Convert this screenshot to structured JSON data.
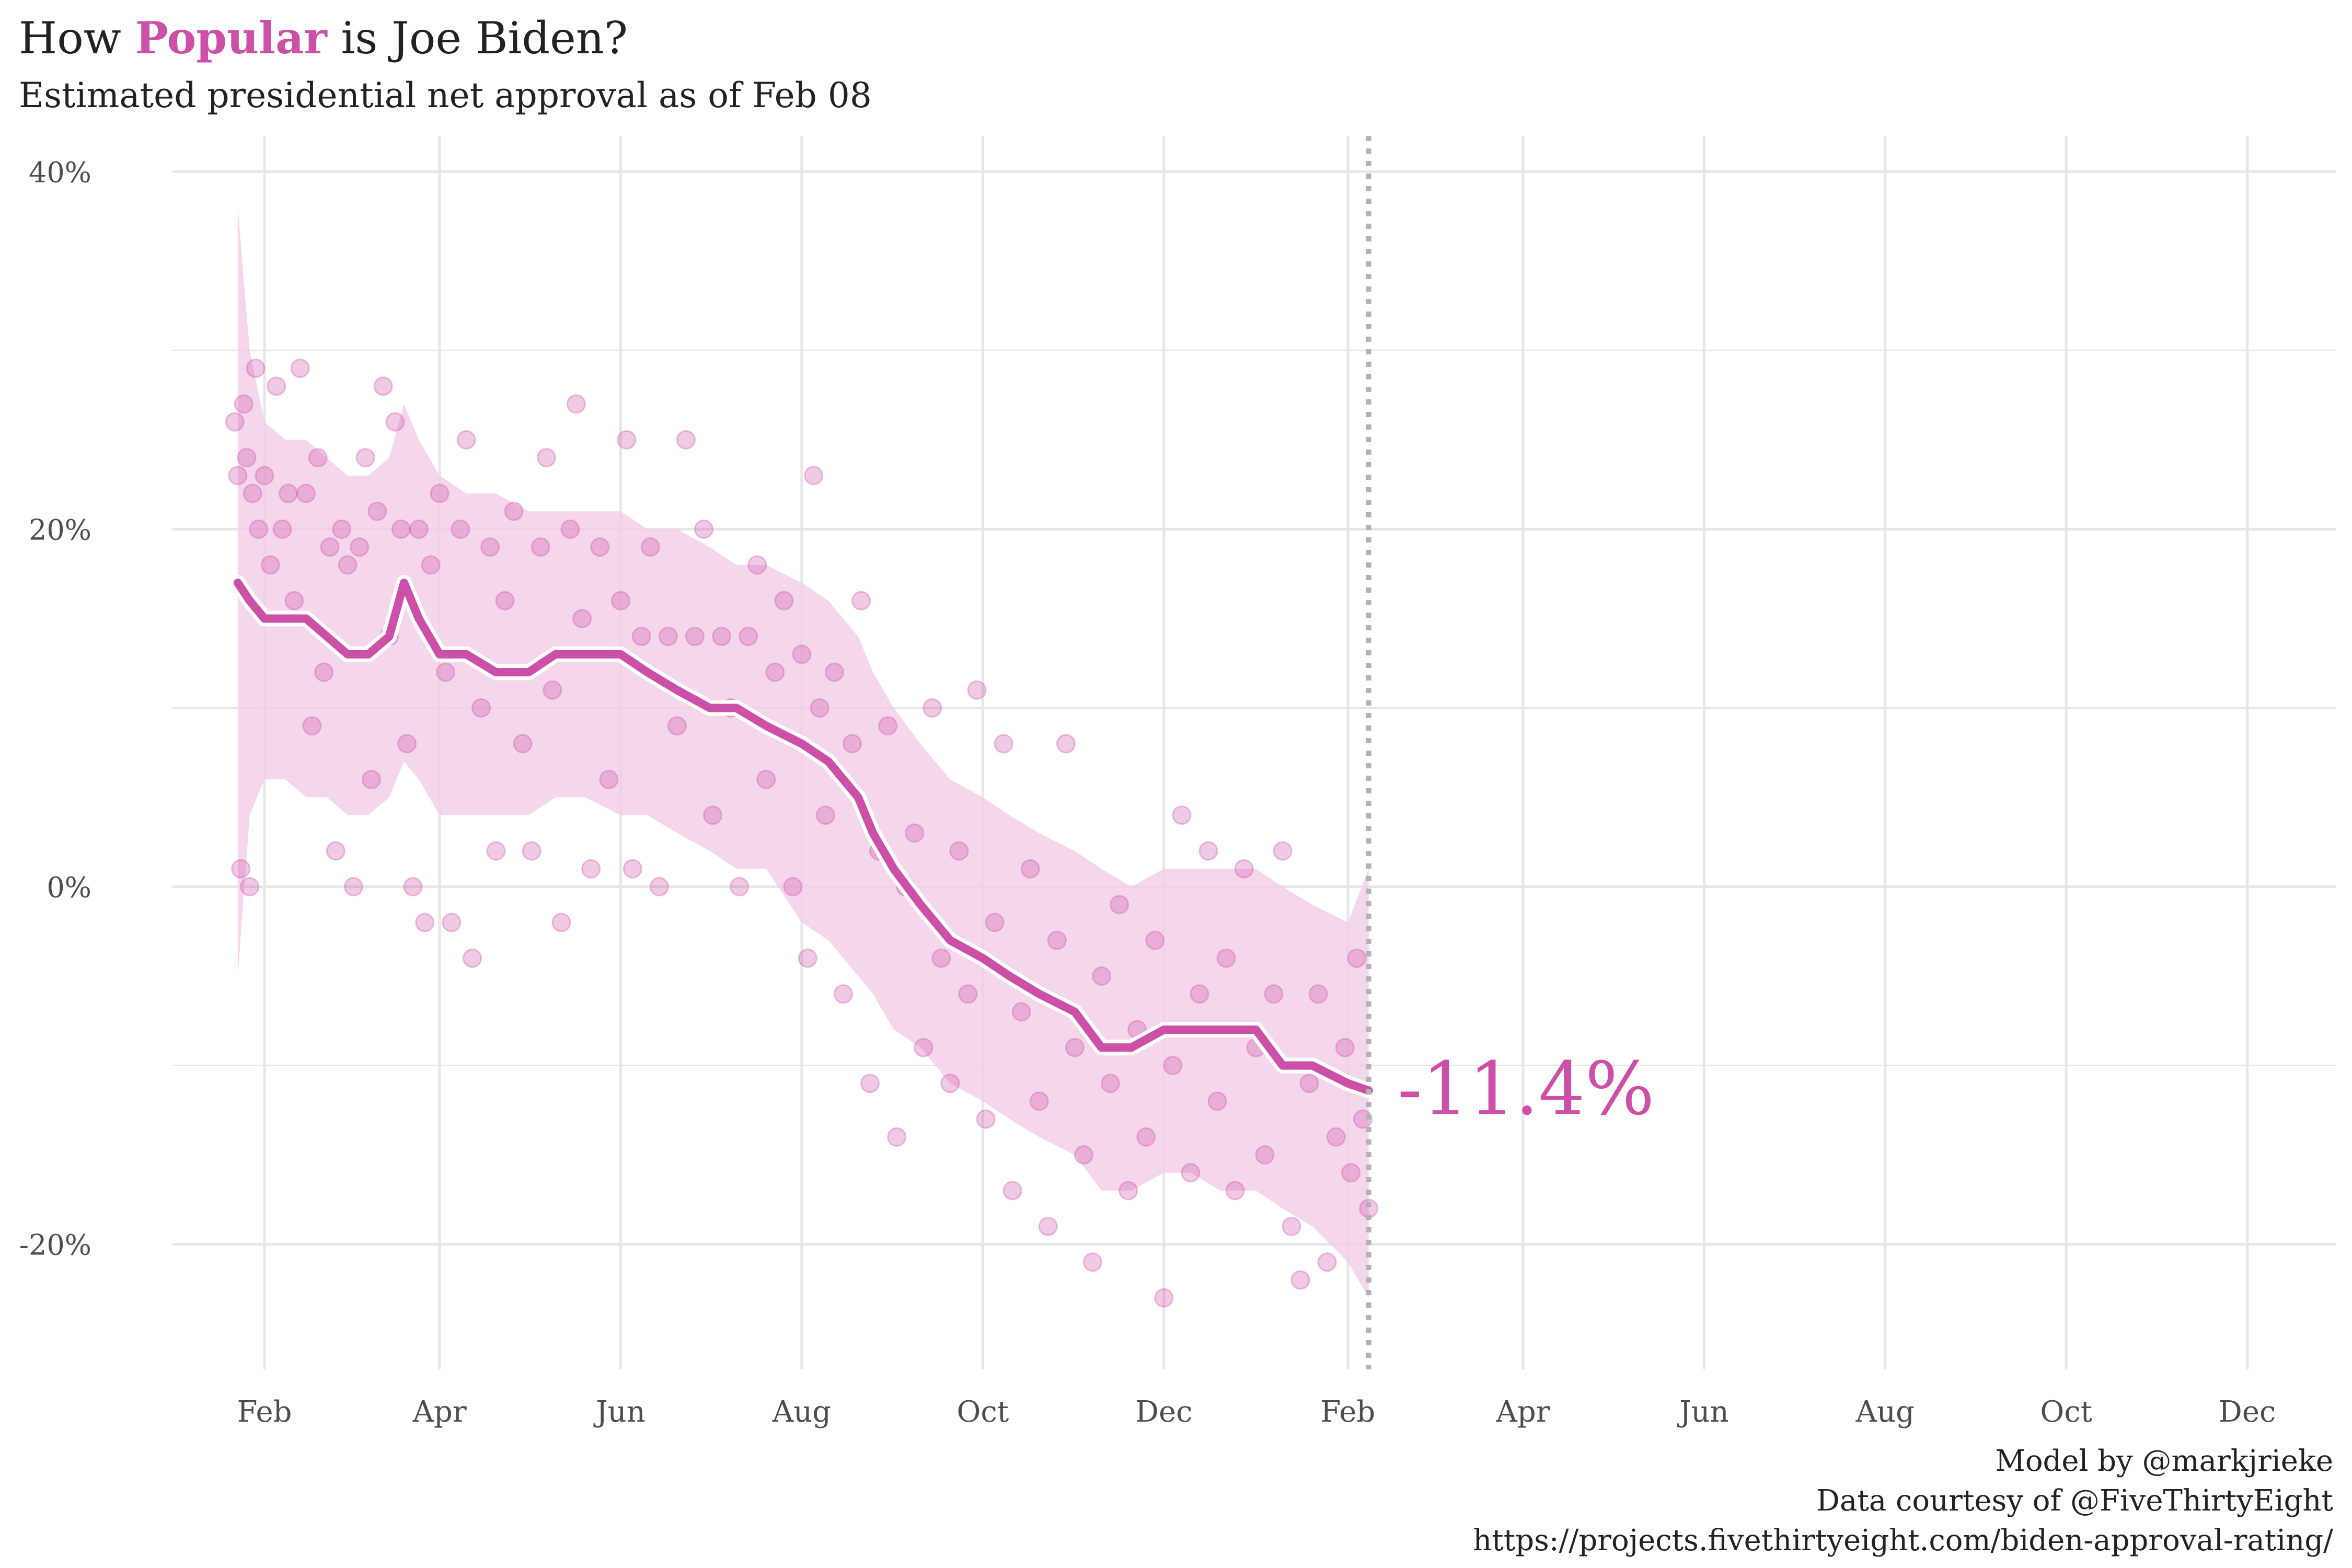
{
  "title": {
    "prefix": "How ",
    "highlight": "Popular",
    "suffix": " is Joe Biden?"
  },
  "subtitle": "Estimated presidential net approval as of Feb 08",
  "caption": [
    "Model by @markjrieke",
    "Data courtesy of @FiveThirtyEight",
    "https://projects.fivethirtyeight.com/biden-approval-rating/"
  ],
  "colors": {
    "accent": "#cc4fa8",
    "band": "#f3cde6",
    "grid": "#e6e6e6",
    "today_line": "#b3b3b3",
    "text": "#222222",
    "axis_text": "#4d4d4d"
  },
  "chart_data": {
    "type": "line",
    "xlabel": "",
    "ylabel": "",
    "x_range": [
      "2021-01-01",
      "2022-12-31"
    ],
    "ylim": [
      -27,
      42
    ],
    "x_ticks": [
      {
        "date": "2021-02-01",
        "label": "Feb"
      },
      {
        "date": "2021-04-01",
        "label": "Apr"
      },
      {
        "date": "2021-06-01",
        "label": "Jun"
      },
      {
        "date": "2021-08-01",
        "label": "Aug"
      },
      {
        "date": "2021-10-01",
        "label": "Oct"
      },
      {
        "date": "2021-12-01",
        "label": "Dec"
      },
      {
        "date": "2022-02-01",
        "label": "Feb"
      },
      {
        "date": "2022-04-01",
        "label": "Apr"
      },
      {
        "date": "2022-06-01",
        "label": "Jun"
      },
      {
        "date": "2022-08-01",
        "label": "Aug"
      },
      {
        "date": "2022-10-01",
        "label": "Oct"
      },
      {
        "date": "2022-12-01",
        "label": "Dec"
      }
    ],
    "y_ticks": [
      {
        "value": 40,
        "label": "40%"
      },
      {
        "value": 20,
        "label": "20%"
      },
      {
        "value": 0,
        "label": "0%"
      },
      {
        "value": -20,
        "label": "-20%"
      }
    ],
    "today": "2022-02-08",
    "final_label": "-11.4%",
    "grid": true,
    "series": [
      {
        "kind": "estimate_with_interval",
        "points": [
          {
            "date": "2021-01-23",
            "y": 17,
            "lo": -5,
            "hi": 38
          },
          {
            "date": "2021-01-27",
            "y": 16,
            "lo": 4,
            "hi": 30
          },
          {
            "date": "2021-02-01",
            "y": 15,
            "lo": 6,
            "hi": 26
          },
          {
            "date": "2021-02-08",
            "y": 15,
            "lo": 6,
            "hi": 25
          },
          {
            "date": "2021-02-15",
            "y": 15,
            "lo": 5,
            "hi": 25
          },
          {
            "date": "2021-02-22",
            "y": 14,
            "lo": 5,
            "hi": 24
          },
          {
            "date": "2021-03-01",
            "y": 13,
            "lo": 4,
            "hi": 23
          },
          {
            "date": "2021-03-08",
            "y": 13,
            "lo": 4,
            "hi": 23
          },
          {
            "date": "2021-03-15",
            "y": 14,
            "lo": 5,
            "hi": 24
          },
          {
            "date": "2021-03-20",
            "y": 17,
            "lo": 7,
            "hi": 27
          },
          {
            "date": "2021-03-25",
            "y": 15,
            "lo": 6,
            "hi": 25
          },
          {
            "date": "2021-04-01",
            "y": 13,
            "lo": 4,
            "hi": 23
          },
          {
            "date": "2021-04-10",
            "y": 13,
            "lo": 4,
            "hi": 22
          },
          {
            "date": "2021-04-20",
            "y": 12,
            "lo": 4,
            "hi": 22
          },
          {
            "date": "2021-05-01",
            "y": 12,
            "lo": 4,
            "hi": 21
          },
          {
            "date": "2021-05-10",
            "y": 13,
            "lo": 5,
            "hi": 21
          },
          {
            "date": "2021-05-20",
            "y": 13,
            "lo": 5,
            "hi": 21
          },
          {
            "date": "2021-06-01",
            "y": 13,
            "lo": 4,
            "hi": 21
          },
          {
            "date": "2021-06-10",
            "y": 12,
            "lo": 4,
            "hi": 20
          },
          {
            "date": "2021-06-20",
            "y": 11,
            "lo": 3,
            "hi": 20
          },
          {
            "date": "2021-07-01",
            "y": 10,
            "lo": 2,
            "hi": 19
          },
          {
            "date": "2021-07-10",
            "y": 10,
            "lo": 1,
            "hi": 18
          },
          {
            "date": "2021-07-20",
            "y": 9,
            "lo": 1,
            "hi": 18
          },
          {
            "date": "2021-08-01",
            "y": 8,
            "lo": -2,
            "hi": 17
          },
          {
            "date": "2021-08-10",
            "y": 7,
            "lo": -3,
            "hi": 16
          },
          {
            "date": "2021-08-20",
            "y": 5,
            "lo": -5,
            "hi": 14
          },
          {
            "date": "2021-08-25",
            "y": 3,
            "lo": -6,
            "hi": 12
          },
          {
            "date": "2021-09-01",
            "y": 1,
            "lo": -8,
            "hi": 10
          },
          {
            "date": "2021-09-10",
            "y": -1,
            "lo": -9,
            "hi": 8
          },
          {
            "date": "2021-09-20",
            "y": -3,
            "lo": -11,
            "hi": 6
          },
          {
            "date": "2021-10-01",
            "y": -4,
            "lo": -12,
            "hi": 5
          },
          {
            "date": "2021-10-10",
            "y": -5,
            "lo": -13,
            "hi": 4
          },
          {
            "date": "2021-10-20",
            "y": -6,
            "lo": -14,
            "hi": 3
          },
          {
            "date": "2021-11-01",
            "y": -7,
            "lo": -15,
            "hi": 2
          },
          {
            "date": "2021-11-10",
            "y": -9,
            "lo": -17,
            "hi": 1
          },
          {
            "date": "2021-11-20",
            "y": -9,
            "lo": -17,
            "hi": 0
          },
          {
            "date": "2021-12-01",
            "y": -8,
            "lo": -16,
            "hi": 1
          },
          {
            "date": "2021-12-10",
            "y": -8,
            "lo": -16,
            "hi": 1
          },
          {
            "date": "2021-12-20",
            "y": -8,
            "lo": -17,
            "hi": 1
          },
          {
            "date": "2022-01-01",
            "y": -8,
            "lo": -17,
            "hi": 1
          },
          {
            "date": "2022-01-10",
            "y": -10,
            "lo": -18,
            "hi": 0
          },
          {
            "date": "2022-01-20",
            "y": -10,
            "lo": -19,
            "hi": -1
          },
          {
            "date": "2022-02-01",
            "y": -11,
            "lo": -21,
            "hi": -2
          },
          {
            "date": "2022-02-08",
            "y": -11.4,
            "lo": -23,
            "hi": 1
          }
        ]
      },
      {
        "kind": "polls",
        "points": [
          {
            "date": "2021-01-22",
            "y": 26
          },
          {
            "date": "2021-01-23",
            "y": 23
          },
          {
            "date": "2021-01-24",
            "y": 1
          },
          {
            "date": "2021-01-25",
            "y": 27
          },
          {
            "date": "2021-01-26",
            "y": 24
          },
          {
            "date": "2021-01-27",
            "y": 0
          },
          {
            "date": "2021-01-28",
            "y": 22
          },
          {
            "date": "2021-01-29",
            "y": 29
          },
          {
            "date": "2021-01-30",
            "y": 20
          },
          {
            "date": "2021-02-01",
            "y": 23
          },
          {
            "date": "2021-02-03",
            "y": 18
          },
          {
            "date": "2021-02-05",
            "y": 28
          },
          {
            "date": "2021-02-07",
            "y": 20
          },
          {
            "date": "2021-02-09",
            "y": 22
          },
          {
            "date": "2021-02-11",
            "y": 16
          },
          {
            "date": "2021-02-13",
            "y": 29
          },
          {
            "date": "2021-02-15",
            "y": 22
          },
          {
            "date": "2021-02-17",
            "y": 9
          },
          {
            "date": "2021-02-19",
            "y": 24
          },
          {
            "date": "2021-02-21",
            "y": 12
          },
          {
            "date": "2021-02-23",
            "y": 19
          },
          {
            "date": "2021-02-25",
            "y": 2
          },
          {
            "date": "2021-02-27",
            "y": 20
          },
          {
            "date": "2021-03-01",
            "y": 18
          },
          {
            "date": "2021-03-03",
            "y": 0
          },
          {
            "date": "2021-03-05",
            "y": 19
          },
          {
            "date": "2021-03-07",
            "y": 24
          },
          {
            "date": "2021-03-09",
            "y": 6
          },
          {
            "date": "2021-03-11",
            "y": 21
          },
          {
            "date": "2021-03-13",
            "y": 28
          },
          {
            "date": "2021-03-15",
            "y": 14
          },
          {
            "date": "2021-03-17",
            "y": 26
          },
          {
            "date": "2021-03-19",
            "y": 20
          },
          {
            "date": "2021-03-21",
            "y": 8
          },
          {
            "date": "2021-03-23",
            "y": 0
          },
          {
            "date": "2021-03-25",
            "y": 20
          },
          {
            "date": "2021-03-27",
            "y": -2
          },
          {
            "date": "2021-03-29",
            "y": 18
          },
          {
            "date": "2021-04-01",
            "y": 22
          },
          {
            "date": "2021-04-03",
            "y": 12
          },
          {
            "date": "2021-04-05",
            "y": -2
          },
          {
            "date": "2021-04-08",
            "y": 20
          },
          {
            "date": "2021-04-10",
            "y": 25
          },
          {
            "date": "2021-04-12",
            "y": -4
          },
          {
            "date": "2021-04-15",
            "y": 10
          },
          {
            "date": "2021-04-18",
            "y": 19
          },
          {
            "date": "2021-04-20",
            "y": 2
          },
          {
            "date": "2021-04-23",
            "y": 16
          },
          {
            "date": "2021-04-26",
            "y": 21
          },
          {
            "date": "2021-04-29",
            "y": 8
          },
          {
            "date": "2021-05-02",
            "y": 2
          },
          {
            "date": "2021-05-05",
            "y": 19
          },
          {
            "date": "2021-05-07",
            "y": 24
          },
          {
            "date": "2021-05-09",
            "y": 11
          },
          {
            "date": "2021-05-12",
            "y": -2
          },
          {
            "date": "2021-05-15",
            "y": 20
          },
          {
            "date": "2021-05-17",
            "y": 27
          },
          {
            "date": "2021-05-19",
            "y": 15
          },
          {
            "date": "2021-05-22",
            "y": 1
          },
          {
            "date": "2021-05-25",
            "y": 19
          },
          {
            "date": "2021-05-28",
            "y": 6
          },
          {
            "date": "2021-06-01",
            "y": 16
          },
          {
            "date": "2021-06-03",
            "y": 25
          },
          {
            "date": "2021-06-05",
            "y": 1
          },
          {
            "date": "2021-06-08",
            "y": 14
          },
          {
            "date": "2021-06-11",
            "y": 19
          },
          {
            "date": "2021-06-14",
            "y": 0
          },
          {
            "date": "2021-06-17",
            "y": 14
          },
          {
            "date": "2021-06-20",
            "y": 9
          },
          {
            "date": "2021-06-23",
            "y": 25
          },
          {
            "date": "2021-06-26",
            "y": 14
          },
          {
            "date": "2021-06-29",
            "y": 20
          },
          {
            "date": "2021-07-02",
            "y": 4
          },
          {
            "date": "2021-07-05",
            "y": 14
          },
          {
            "date": "2021-07-08",
            "y": 10
          },
          {
            "date": "2021-07-11",
            "y": 0
          },
          {
            "date": "2021-07-14",
            "y": 14
          },
          {
            "date": "2021-07-17",
            "y": 18
          },
          {
            "date": "2021-07-20",
            "y": 6
          },
          {
            "date": "2021-07-23",
            "y": 12
          },
          {
            "date": "2021-07-26",
            "y": 16
          },
          {
            "date": "2021-07-29",
            "y": 0
          },
          {
            "date": "2021-08-01",
            "y": 13
          },
          {
            "date": "2021-08-03",
            "y": -4
          },
          {
            "date": "2021-08-05",
            "y": 23
          },
          {
            "date": "2021-08-07",
            "y": 10
          },
          {
            "date": "2021-08-09",
            "y": 4
          },
          {
            "date": "2021-08-12",
            "y": 12
          },
          {
            "date": "2021-08-15",
            "y": -6
          },
          {
            "date": "2021-08-18",
            "y": 8
          },
          {
            "date": "2021-08-21",
            "y": 16
          },
          {
            "date": "2021-08-24",
            "y": -11
          },
          {
            "date": "2021-08-27",
            "y": 2
          },
          {
            "date": "2021-08-30",
            "y": 9
          },
          {
            "date": "2021-09-02",
            "y": -14
          },
          {
            "date": "2021-09-05",
            "y": 0
          },
          {
            "date": "2021-09-08",
            "y": 3
          },
          {
            "date": "2021-09-11",
            "y": -9
          },
          {
            "date": "2021-09-14",
            "y": 10
          },
          {
            "date": "2021-09-17",
            "y": -4
          },
          {
            "date": "2021-09-20",
            "y": -11
          },
          {
            "date": "2021-09-23",
            "y": 2
          },
          {
            "date": "2021-09-26",
            "y": -6
          },
          {
            "date": "2021-09-29",
            "y": 11
          },
          {
            "date": "2021-10-02",
            "y": -13
          },
          {
            "date": "2021-10-05",
            "y": -2
          },
          {
            "date": "2021-10-08",
            "y": 8
          },
          {
            "date": "2021-10-11",
            "y": -17
          },
          {
            "date": "2021-10-14",
            "y": -7
          },
          {
            "date": "2021-10-17",
            "y": 1
          },
          {
            "date": "2021-10-20",
            "y": -12
          },
          {
            "date": "2021-10-23",
            "y": -19
          },
          {
            "date": "2021-10-26",
            "y": -3
          },
          {
            "date": "2021-10-29",
            "y": 8
          },
          {
            "date": "2021-11-01",
            "y": -9
          },
          {
            "date": "2021-11-04",
            "y": -15
          },
          {
            "date": "2021-11-07",
            "y": -21
          },
          {
            "date": "2021-11-10",
            "y": -5
          },
          {
            "date": "2021-11-13",
            "y": -11
          },
          {
            "date": "2021-11-16",
            "y": -1
          },
          {
            "date": "2021-11-19",
            "y": -17
          },
          {
            "date": "2021-11-22",
            "y": -8
          },
          {
            "date": "2021-11-25",
            "y": -14
          },
          {
            "date": "2021-11-28",
            "y": -3
          },
          {
            "date": "2021-12-01",
            "y": -23
          },
          {
            "date": "2021-12-04",
            "y": -10
          },
          {
            "date": "2021-12-07",
            "y": 4
          },
          {
            "date": "2021-12-10",
            "y": -16
          },
          {
            "date": "2021-12-13",
            "y": -6
          },
          {
            "date": "2021-12-16",
            "y": 2
          },
          {
            "date": "2021-12-19",
            "y": -12
          },
          {
            "date": "2021-12-22",
            "y": -4
          },
          {
            "date": "2021-12-25",
            "y": -17
          },
          {
            "date": "2021-12-28",
            "y": 1
          },
          {
            "date": "2022-01-01",
            "y": -9
          },
          {
            "date": "2022-01-04",
            "y": -15
          },
          {
            "date": "2022-01-07",
            "y": -6
          },
          {
            "date": "2022-01-10",
            "y": 2
          },
          {
            "date": "2022-01-13",
            "y": -19
          },
          {
            "date": "2022-01-16",
            "y": -22
          },
          {
            "date": "2022-01-19",
            "y": -11
          },
          {
            "date": "2022-01-22",
            "y": -6
          },
          {
            "date": "2022-01-25",
            "y": -21
          },
          {
            "date": "2022-01-28",
            "y": -14
          },
          {
            "date": "2022-01-31",
            "y": -9
          },
          {
            "date": "2022-02-02",
            "y": -16
          },
          {
            "date": "2022-02-04",
            "y": -4
          },
          {
            "date": "2022-02-06",
            "y": -13
          },
          {
            "date": "2022-02-08",
            "y": -18
          }
        ]
      }
    ]
  }
}
